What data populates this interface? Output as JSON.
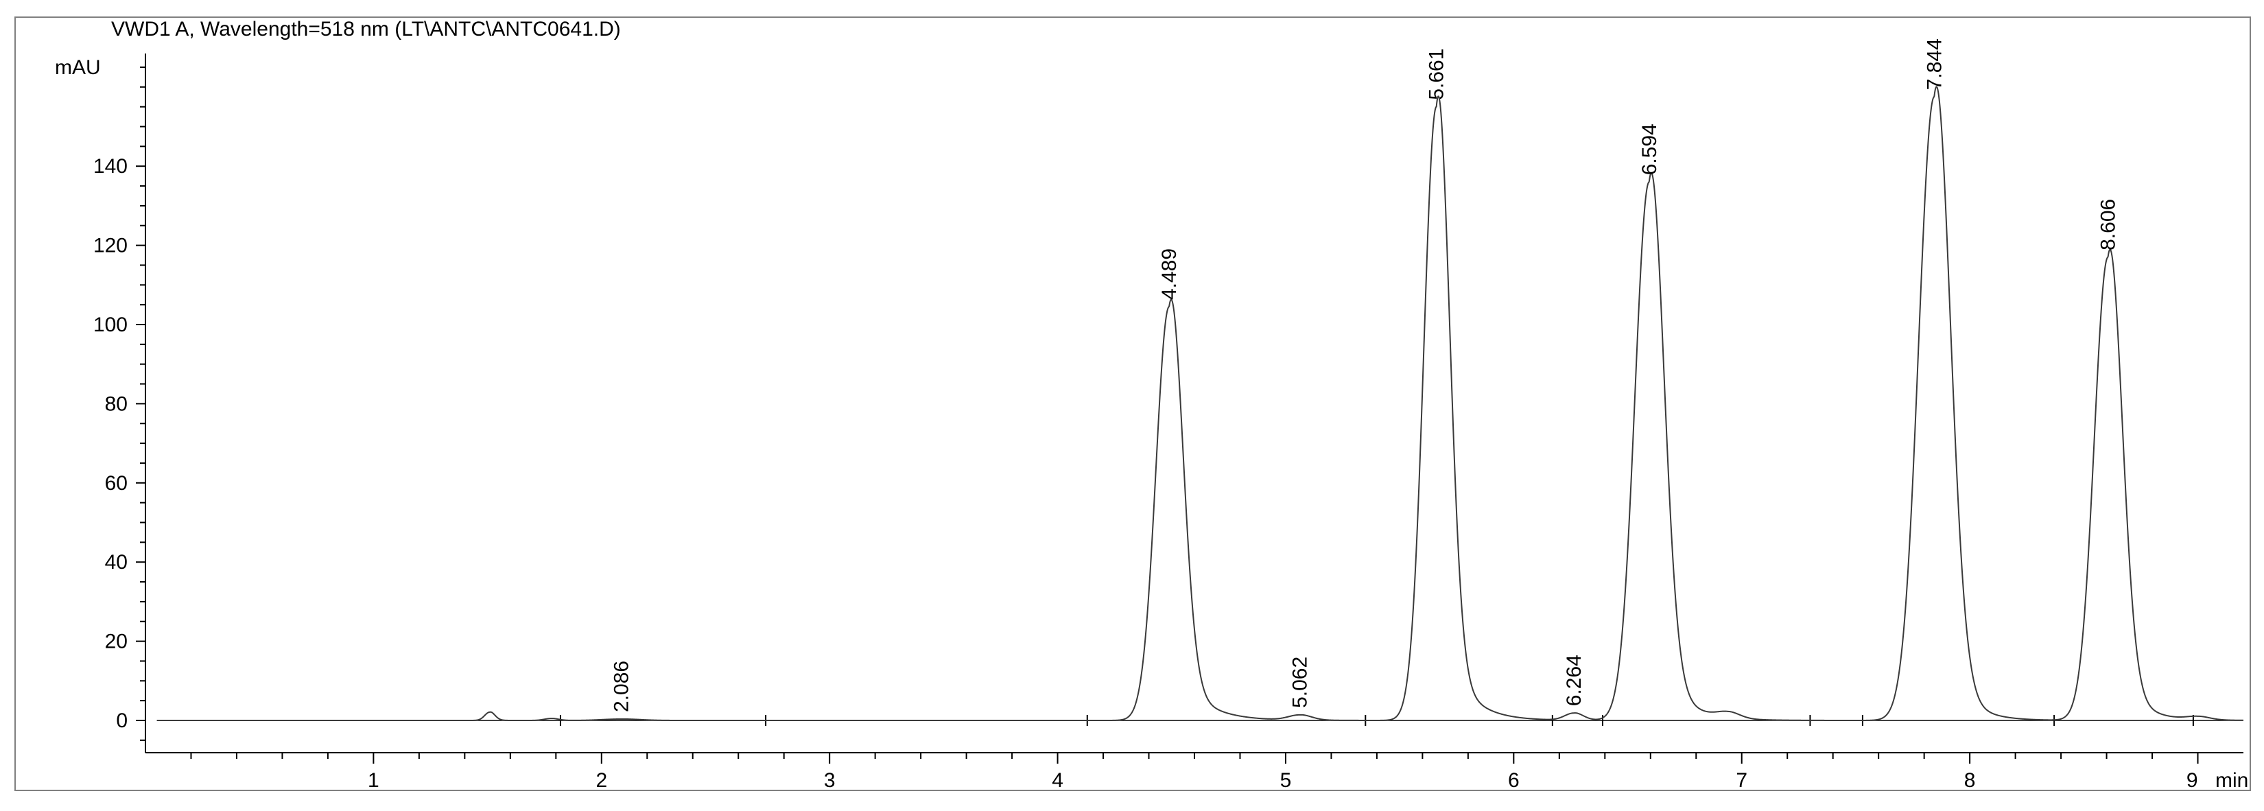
{
  "chart_data": {
    "type": "line",
    "title": "VWD1 A, Wavelength=518 nm (LT\\ANTC\\ANTC0641.D)",
    "ylabel": "mAU",
    "xlabel": "min",
    "xlim": [
      0,
      9.2
    ],
    "ylim": [
      -8,
      170
    ],
    "x_ticks": [
      {
        "value": 1,
        "label": "1"
      },
      {
        "value": 2,
        "label": "2"
      },
      {
        "value": 3,
        "label": "3"
      },
      {
        "value": 4,
        "label": "4"
      },
      {
        "value": 5,
        "label": "5"
      },
      {
        "value": 6,
        "label": "6"
      },
      {
        "value": 7,
        "label": "7"
      },
      {
        "value": 8,
        "label": "8"
      },
      {
        "value": 9,
        "label": "9"
      }
    ],
    "y_ticks": [
      {
        "value": 0,
        "label": "0"
      },
      {
        "value": 20,
        "label": "20"
      },
      {
        "value": 40,
        "label": "40"
      },
      {
        "value": 60,
        "label": "60"
      },
      {
        "value": 80,
        "label": "80"
      },
      {
        "value": 100,
        "label": "100"
      },
      {
        "value": 120,
        "label": "120"
      },
      {
        "value": 140,
        "label": "140"
      }
    ],
    "peaks": [
      {
        "rt": 1.51,
        "height": 2.1,
        "sigma": 0.022,
        "tail": 0.02,
        "label": ""
      },
      {
        "rt": 1.78,
        "height": 0.5,
        "sigma": 0.03,
        "tail": 0.02,
        "label": ""
      },
      {
        "rt": 2.086,
        "height": 0.35,
        "sigma": 0.08,
        "tail": 0.05,
        "label": "2.086"
      },
      {
        "rt": 4.489,
        "height": 104.5,
        "sigma": 0.058,
        "tail": 0.11,
        "label": "4.489"
      },
      {
        "rt": 5.062,
        "height": 1.3,
        "sigma": 0.05,
        "tail": 0.05,
        "label": "5.062"
      },
      {
        "rt": 5.661,
        "height": 155.0,
        "sigma": 0.055,
        "tail": 0.1,
        "label": "5.661"
      },
      {
        "rt": 6.264,
        "height": 1.8,
        "sigma": 0.04,
        "tail": 0.04,
        "label": "6.264"
      },
      {
        "rt": 6.594,
        "height": 136.0,
        "sigma": 0.062,
        "tail": 0.1,
        "label": "6.594"
      },
      {
        "rt": 6.94,
        "height": 1.5,
        "sigma": 0.05,
        "tail": 0.05,
        "label": ""
      },
      {
        "rt": 7.844,
        "height": 157.5,
        "sigma": 0.068,
        "tail": 0.09,
        "label": "7.844"
      },
      {
        "rt": 8.606,
        "height": 117.0,
        "sigma": 0.06,
        "tail": 0.09,
        "label": "8.606"
      },
      {
        "rt": 9.0,
        "height": 0.8,
        "sigma": 0.05,
        "tail": 0.05,
        "label": ""
      }
    ],
    "baseline_markers": [
      1.82,
      2.72,
      4.13,
      5.35,
      6.17,
      6.39,
      7.3,
      7.53,
      8.37,
      8.98
    ],
    "grid": false,
    "legend": "none"
  },
  "colors": {
    "trace": "#3a3a3a",
    "axis": "#000000",
    "frame": "#808080",
    "baseline": "#000000"
  }
}
